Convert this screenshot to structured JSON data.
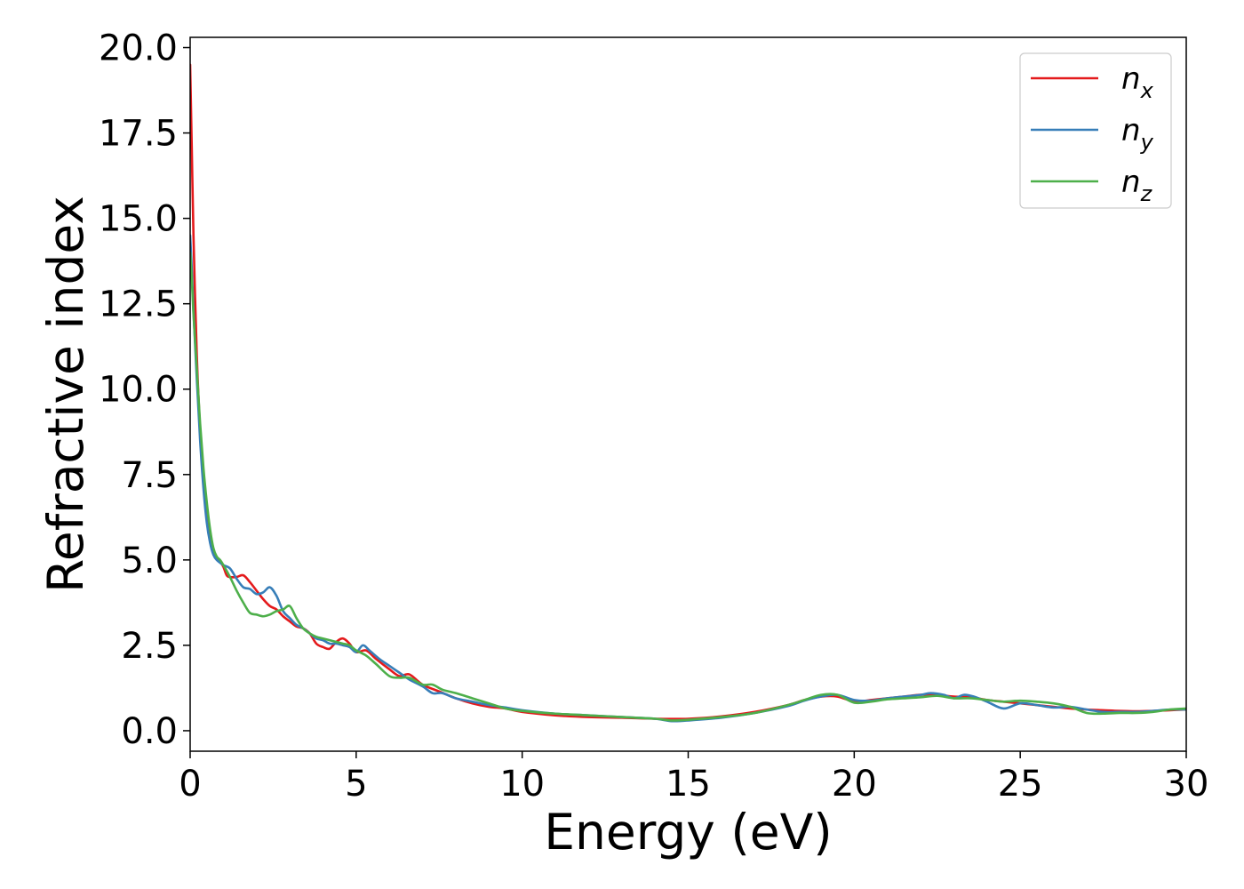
{
  "chart_data": {
    "type": "line",
    "xlabel": "Energy (eV)",
    "ylabel": "Refractive index",
    "xlim": [
      0,
      30
    ],
    "ylim": [
      -0.6,
      20.3
    ],
    "xticks": [
      "0",
      "5",
      "10",
      "15",
      "20",
      "25",
      "30"
    ],
    "yticks": [
      "0.0",
      "2.5",
      "5.0",
      "7.5",
      "10.0",
      "12.5",
      "15.0",
      "17.5",
      "20.0"
    ],
    "grid": false,
    "legend_position": "top-right",
    "series": [
      {
        "name": "n",
        "subscript": "x",
        "color": "#e41a1c",
        "points": [
          [
            0.0,
            19.5
          ],
          [
            0.05,
            17.0
          ],
          [
            0.1,
            14.5
          ],
          [
            0.2,
            11.0
          ],
          [
            0.3,
            8.8
          ],
          [
            0.4,
            7.3
          ],
          [
            0.5,
            6.3
          ],
          [
            0.6,
            5.6
          ],
          [
            0.7,
            5.2
          ],
          [
            0.8,
            5.05
          ],
          [
            0.9,
            4.95
          ],
          [
            1.0,
            4.8
          ],
          [
            1.1,
            4.55
          ],
          [
            1.2,
            4.5
          ],
          [
            1.4,
            4.5
          ],
          [
            1.6,
            4.55
          ],
          [
            1.8,
            4.35
          ],
          [
            2.0,
            4.1
          ],
          [
            2.2,
            3.85
          ],
          [
            2.4,
            3.65
          ],
          [
            2.6,
            3.55
          ],
          [
            2.8,
            3.35
          ],
          [
            3.0,
            3.2
          ],
          [
            3.2,
            3.05
          ],
          [
            3.4,
            3.0
          ],
          [
            3.6,
            2.85
          ],
          [
            3.8,
            2.55
          ],
          [
            4.0,
            2.45
          ],
          [
            4.2,
            2.4
          ],
          [
            4.4,
            2.6
          ],
          [
            4.6,
            2.7
          ],
          [
            4.8,
            2.55
          ],
          [
            5.0,
            2.3
          ],
          [
            5.3,
            2.35
          ],
          [
            5.6,
            2.1
          ],
          [
            6.0,
            1.8
          ],
          [
            6.3,
            1.6
          ],
          [
            6.6,
            1.65
          ],
          [
            7.0,
            1.35
          ],
          [
            7.5,
            1.15
          ],
          [
            8.0,
            0.95
          ],
          [
            8.5,
            0.8
          ],
          [
            9.0,
            0.7
          ],
          [
            9.5,
            0.65
          ],
          [
            10.0,
            0.55
          ],
          [
            11.0,
            0.45
          ],
          [
            12.0,
            0.4
          ],
          [
            13.0,
            0.38
          ],
          [
            14.0,
            0.35
          ],
          [
            15.0,
            0.35
          ],
          [
            16.0,
            0.42
          ],
          [
            17.0,
            0.55
          ],
          [
            18.0,
            0.75
          ],
          [
            18.5,
            0.9
          ],
          [
            19.0,
            1.0
          ],
          [
            19.5,
            1.0
          ],
          [
            20.0,
            0.85
          ],
          [
            20.5,
            0.9
          ],
          [
            21.0,
            0.95
          ],
          [
            21.5,
            1.0
          ],
          [
            22.0,
            1.05
          ],
          [
            22.5,
            1.05
          ],
          [
            23.0,
            1.0
          ],
          [
            23.5,
            0.98
          ],
          [
            24.0,
            0.9
          ],
          [
            24.5,
            0.85
          ],
          [
            25.0,
            0.8
          ],
          [
            25.5,
            0.75
          ],
          [
            26.0,
            0.7
          ],
          [
            26.5,
            0.65
          ],
          [
            27.0,
            0.62
          ],
          [
            27.5,
            0.6
          ],
          [
            28.0,
            0.58
          ],
          [
            28.5,
            0.57
          ],
          [
            29.0,
            0.58
          ],
          [
            29.5,
            0.6
          ],
          [
            30.0,
            0.62
          ]
        ]
      },
      {
        "name": "n",
        "subscript": "y",
        "color": "#377eb8",
        "points": [
          [
            0.0,
            14.5
          ],
          [
            0.05,
            13.5
          ],
          [
            0.1,
            12.3
          ],
          [
            0.2,
            10.3
          ],
          [
            0.3,
            8.5
          ],
          [
            0.4,
            7.1
          ],
          [
            0.5,
            6.1
          ],
          [
            0.6,
            5.5
          ],
          [
            0.7,
            5.15
          ],
          [
            0.8,
            5.0
          ],
          [
            1.0,
            4.85
          ],
          [
            1.2,
            4.75
          ],
          [
            1.4,
            4.45
          ],
          [
            1.6,
            4.2
          ],
          [
            1.8,
            4.15
          ],
          [
            2.0,
            4.0
          ],
          [
            2.2,
            4.05
          ],
          [
            2.4,
            4.2
          ],
          [
            2.6,
            3.95
          ],
          [
            2.8,
            3.5
          ],
          [
            3.0,
            3.3
          ],
          [
            3.2,
            3.1
          ],
          [
            3.4,
            3.0
          ],
          [
            3.6,
            2.85
          ],
          [
            3.8,
            2.7
          ],
          [
            4.0,
            2.65
          ],
          [
            4.2,
            2.55
          ],
          [
            4.4,
            2.55
          ],
          [
            4.6,
            2.5
          ],
          [
            4.8,
            2.45
          ],
          [
            5.0,
            2.3
          ],
          [
            5.2,
            2.5
          ],
          [
            5.4,
            2.35
          ],
          [
            5.7,
            2.1
          ],
          [
            6.0,
            1.9
          ],
          [
            6.3,
            1.7
          ],
          [
            6.6,
            1.5
          ],
          [
            7.0,
            1.3
          ],
          [
            7.3,
            1.1
          ],
          [
            7.6,
            1.1
          ],
          [
            8.0,
            0.95
          ],
          [
            8.5,
            0.85
          ],
          [
            9.0,
            0.75
          ],
          [
            9.5,
            0.68
          ],
          [
            10.0,
            0.6
          ],
          [
            11.0,
            0.5
          ],
          [
            12.0,
            0.45
          ],
          [
            13.0,
            0.4
          ],
          [
            14.0,
            0.35
          ],
          [
            14.5,
            0.28
          ],
          [
            15.0,
            0.3
          ],
          [
            16.0,
            0.38
          ],
          [
            17.0,
            0.52
          ],
          [
            18.0,
            0.72
          ],
          [
            18.5,
            0.88
          ],
          [
            19.0,
            1.0
          ],
          [
            19.5,
            1.05
          ],
          [
            20.0,
            0.9
          ],
          [
            20.5,
            0.88
          ],
          [
            21.0,
            0.95
          ],
          [
            21.5,
            1.0
          ],
          [
            22.0,
            1.05
          ],
          [
            22.3,
            1.1
          ],
          [
            22.7,
            1.05
          ],
          [
            23.0,
            0.95
          ],
          [
            23.3,
            1.05
          ],
          [
            23.6,
            1.0
          ],
          [
            24.0,
            0.85
          ],
          [
            24.5,
            0.65
          ],
          [
            25.0,
            0.8
          ],
          [
            25.5,
            0.75
          ],
          [
            26.0,
            0.68
          ],
          [
            26.5,
            0.7
          ],
          [
            27.0,
            0.62
          ],
          [
            27.5,
            0.55
          ],
          [
            28.0,
            0.55
          ],
          [
            28.5,
            0.55
          ],
          [
            29.0,
            0.58
          ],
          [
            29.5,
            0.62
          ],
          [
            30.0,
            0.62
          ]
        ]
      },
      {
        "name": "n",
        "subscript": "z",
        "color": "#4daf4a",
        "points": [
          [
            0.0,
            14.0
          ],
          [
            0.05,
            13.2
          ],
          [
            0.1,
            12.2
          ],
          [
            0.2,
            10.6
          ],
          [
            0.3,
            9.0
          ],
          [
            0.4,
            7.7
          ],
          [
            0.5,
            6.7
          ],
          [
            0.6,
            5.9
          ],
          [
            0.7,
            5.35
          ],
          [
            0.8,
            5.1
          ],
          [
            0.9,
            5.0
          ],
          [
            1.0,
            4.85
          ],
          [
            1.2,
            4.5
          ],
          [
            1.4,
            4.1
          ],
          [
            1.6,
            3.75
          ],
          [
            1.8,
            3.45
          ],
          [
            2.0,
            3.4
          ],
          [
            2.2,
            3.35
          ],
          [
            2.4,
            3.4
          ],
          [
            2.6,
            3.5
          ],
          [
            2.8,
            3.55
          ],
          [
            3.0,
            3.65
          ],
          [
            3.2,
            3.3
          ],
          [
            3.4,
            3.0
          ],
          [
            3.6,
            2.85
          ],
          [
            3.8,
            2.75
          ],
          [
            4.0,
            2.7
          ],
          [
            4.2,
            2.65
          ],
          [
            4.4,
            2.6
          ],
          [
            4.6,
            2.55
          ],
          [
            4.8,
            2.5
          ],
          [
            5.0,
            2.35
          ],
          [
            5.3,
            2.2
          ],
          [
            5.6,
            1.95
          ],
          [
            6.0,
            1.6
          ],
          [
            6.3,
            1.55
          ],
          [
            6.6,
            1.55
          ],
          [
            7.0,
            1.35
          ],
          [
            7.3,
            1.35
          ],
          [
            7.6,
            1.2
          ],
          [
            8.0,
            1.1
          ],
          [
            8.5,
            0.95
          ],
          [
            9.0,
            0.8
          ],
          [
            9.5,
            0.65
          ],
          [
            10.0,
            0.58
          ],
          [
            11.0,
            0.5
          ],
          [
            12.0,
            0.45
          ],
          [
            13.0,
            0.4
          ],
          [
            14.0,
            0.35
          ],
          [
            14.5,
            0.3
          ],
          [
            15.0,
            0.32
          ],
          [
            16.0,
            0.4
          ],
          [
            17.0,
            0.52
          ],
          [
            18.0,
            0.75
          ],
          [
            18.5,
            0.9
          ],
          [
            19.0,
            1.05
          ],
          [
            19.5,
            1.05
          ],
          [
            20.0,
            0.82
          ],
          [
            20.5,
            0.85
          ],
          [
            21.0,
            0.92
          ],
          [
            21.5,
            0.95
          ],
          [
            22.0,
            0.98
          ],
          [
            22.5,
            1.02
          ],
          [
            23.0,
            0.95
          ],
          [
            23.5,
            0.95
          ],
          [
            24.0,
            0.9
          ],
          [
            24.5,
            0.85
          ],
          [
            25.0,
            0.88
          ],
          [
            25.5,
            0.85
          ],
          [
            26.0,
            0.8
          ],
          [
            26.5,
            0.7
          ],
          [
            27.0,
            0.52
          ],
          [
            27.5,
            0.5
          ],
          [
            28.0,
            0.52
          ],
          [
            28.5,
            0.52
          ],
          [
            29.0,
            0.55
          ],
          [
            29.5,
            0.62
          ],
          [
            30.0,
            0.65
          ]
        ]
      }
    ]
  }
}
